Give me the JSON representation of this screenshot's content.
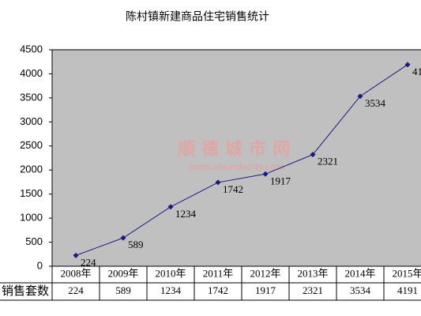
{
  "chart_data": {
    "type": "line",
    "title": "陈村镇新建商品住宅销售统计",
    "categories": [
      "2008年",
      "2009年",
      "2010年",
      "2011年",
      "2012年",
      "2013年",
      "2014年",
      "2015年"
    ],
    "series": [
      {
        "name": "销售套数",
        "color": "#1a1a80",
        "values": [
          224,
          589,
          1234,
          1742,
          1917,
          2321,
          3534,
          4191
        ]
      }
    ],
    "ylim": [
      0,
      4500
    ],
    "yticks": [
      0,
      500,
      1000,
      1500,
      2000,
      2500,
      3000,
      3500,
      4000,
      4500
    ],
    "grid": false,
    "plot_background": "#c0c0c0",
    "watermark": [
      "顺德城市网",
      "www.shundecity.com"
    ]
  }
}
